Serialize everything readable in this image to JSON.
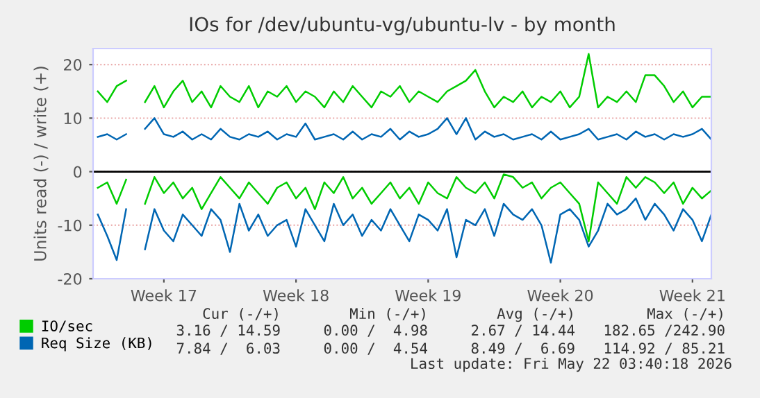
{
  "chart_data": {
    "type": "line",
    "title": "IOs for /dev/ubuntu-vg/ubuntu-lv - by month",
    "ylabel": "Units read (-) / write (+)",
    "categories": [
      null,
      null,
      null,
      null,
      null,
      null,
      null,
      "Week 17",
      null,
      null,
      null,
      null,
      null,
      null,
      null,
      null,
      null,
      null,
      null,
      null,
      null,
      "Week 18",
      null,
      null,
      null,
      null,
      null,
      null,
      null,
      null,
      null,
      null,
      null,
      null,
      null,
      "Week 19",
      null,
      null,
      null,
      null,
      null,
      null,
      null,
      null,
      null,
      null,
      null,
      null,
      null,
      "Week 20",
      null,
      null,
      null,
      null,
      null,
      null,
      null,
      null,
      null,
      null,
      null,
      null,
      null,
      "Week 21",
      null,
      null
    ],
    "series": [
      {
        "name": "IO/sec",
        "color": "#00cc00",
        "values": [
          15,
          13,
          16,
          17,
          null,
          13,
          16,
          12,
          15,
          17,
          13,
          15,
          12,
          16,
          14,
          13,
          16,
          12,
          15,
          14,
          16,
          13,
          15,
          14,
          12,
          15,
          13,
          16,
          14,
          12,
          15,
          14,
          16,
          13,
          15,
          14,
          13,
          15,
          16,
          17,
          19,
          15,
          12,
          14,
          13,
          15,
          12,
          14,
          13,
          15,
          12,
          14,
          22,
          12,
          14,
          13,
          15,
          13,
          18,
          18,
          16,
          13,
          15,
          12,
          14,
          14
        ]
      },
      {
        "name": "Req Size (KB)",
        "color": "#0066b3",
        "values": [
          6.5,
          7,
          6,
          7,
          null,
          8,
          10,
          7,
          6.5,
          7.5,
          6,
          7,
          6,
          8,
          6.5,
          6,
          7,
          6.5,
          7.5,
          6,
          7,
          6.5,
          9,
          6,
          6.5,
          7,
          6,
          7.5,
          6,
          7,
          6.5,
          8,
          6,
          7.5,
          6.5,
          7,
          8,
          10,
          7,
          10,
          6,
          7.5,
          6.5,
          7,
          6,
          6.5,
          7,
          6,
          7.5,
          6,
          6.5,
          7,
          8,
          6,
          6.5,
          7,
          6,
          7.5,
          6.5,
          7,
          6,
          7,
          6.5,
          7,
          8,
          6
        ]
      },
      {
        "color": "#00cc00",
        "values": [
          -3,
          -2,
          -6,
          -1.5,
          null,
          -6,
          -1,
          -4,
          -2,
          -5,
          -3,
          -7,
          -4,
          -1,
          -3,
          -5,
          -2,
          -4,
          -6,
          -3,
          -2,
          -5,
          -3,
          -7,
          -2,
          -4,
          -1,
          -5,
          -3,
          -6,
          -4,
          -2,
          -5,
          -3,
          -6,
          -2,
          -4,
          -5,
          -1,
          -3,
          -4,
          -2,
          -5,
          -0.5,
          -1,
          -3,
          -2,
          -5,
          -3,
          -2,
          -4,
          -6,
          -13,
          -2,
          -4,
          -6,
          -1,
          -3,
          -1,
          -2,
          -4,
          -2,
          -6,
          -3,
          -5,
          -3.5
        ]
      },
      {
        "color": "#0066b3",
        "values": [
          -8,
          -12,
          -16.5,
          -7,
          null,
          -14.5,
          -7,
          -11,
          -13,
          -8,
          -10,
          -12,
          -7,
          -9,
          -15,
          -6,
          -11,
          -8,
          -12,
          -10,
          -9,
          -14,
          -7,
          -10,
          -13,
          -6,
          -10,
          -8,
          -12,
          -9,
          -11,
          -7,
          -10,
          -13,
          -8,
          -9,
          -11,
          -7,
          -16,
          -9,
          -10,
          -7,
          -12,
          -6,
          -8,
          -9,
          -7,
          -10,
          -17,
          -8,
          -7,
          -9,
          -14,
          -11,
          -6,
          -8,
          -7,
          -5,
          -9,
          -6,
          -8,
          -11,
          -7,
          -9,
          -13,
          -8
        ]
      }
    ],
    "ylim": [
      -20,
      23
    ],
    "yticks": [
      -20,
      -10,
      0,
      10,
      20
    ],
    "ref_lines": [
      {
        "axis": "y",
        "value": 0,
        "color": "#000000"
      }
    ],
    "grid": "y",
    "legend": "bottom",
    "annotations": [
      "Cur (-/+)",
      "Min (-/+)",
      "Avg (-/+)",
      "Max (-/+)",
      "3.16 / 14.59",
      "0.00 /  4.98",
      "2.67 / 14.44",
      "182.65 /242.90",
      "7.84 /  6.03",
      "0.00 /  4.54",
      "8.49 /  6.69",
      "114.92 / 85.21",
      "Last update: Fri May 22 03:40:18 2026"
    ]
  }
}
